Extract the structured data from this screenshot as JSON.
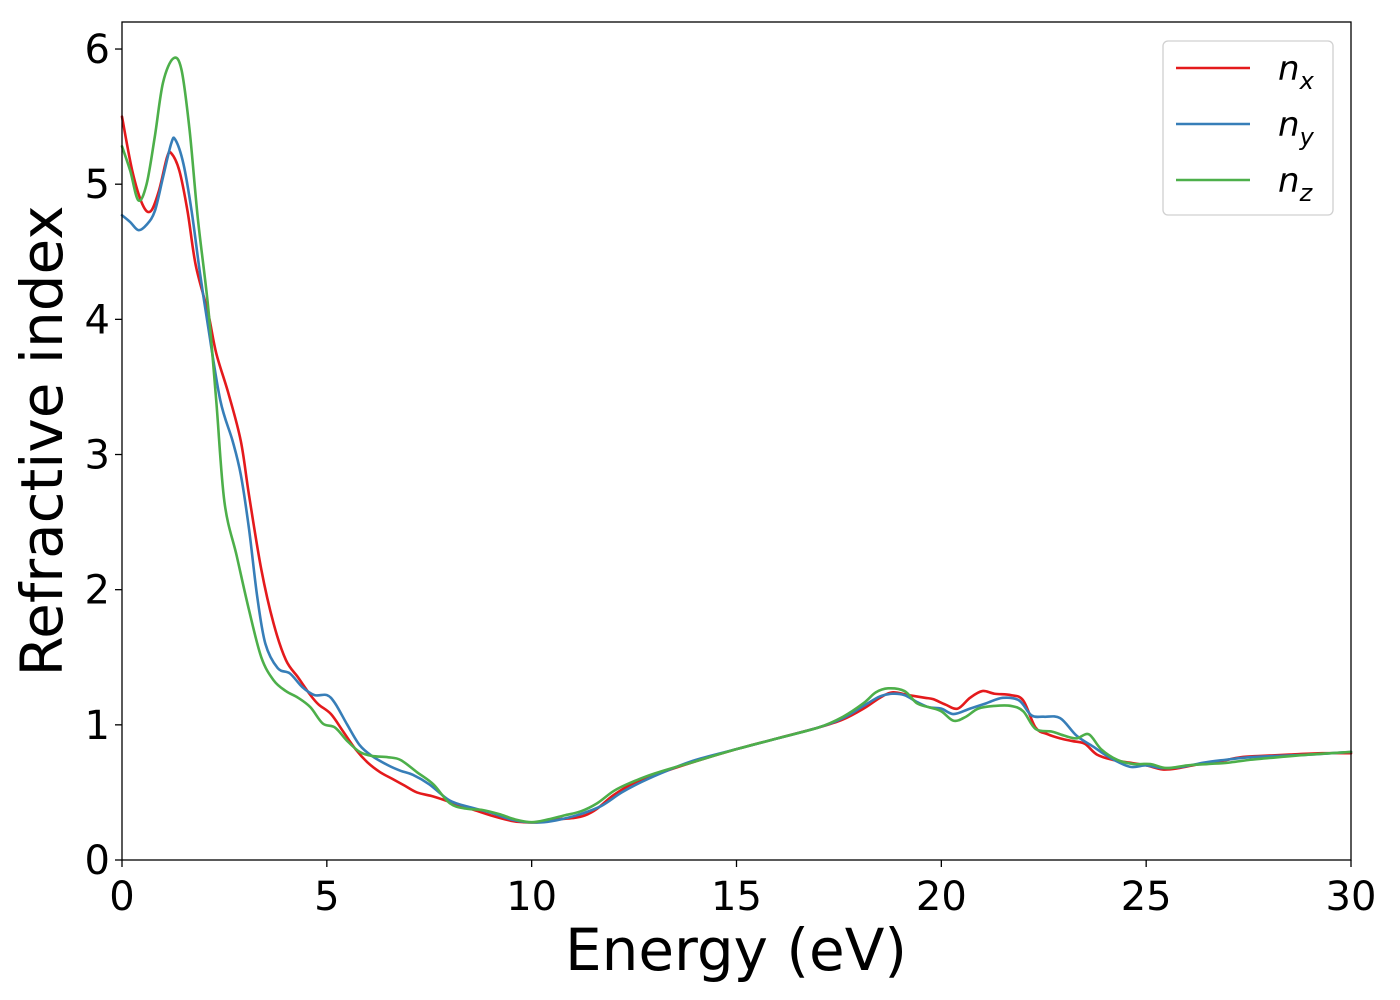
{
  "chart_data": {
    "type": "line",
    "title": "",
    "xlabel": "Energy (eV)",
    "ylabel": "Refractive index",
    "xlim": [
      0,
      30
    ],
    "ylim": [
      0,
      6.2
    ],
    "xticks": [
      0,
      5,
      10,
      15,
      20,
      25,
      30
    ],
    "yticks": [
      0,
      1,
      2,
      3,
      4,
      5,
      6
    ],
    "grid": false,
    "legend": {
      "position": "top-right",
      "entries": [
        {
          "base": "n",
          "sub": "x"
        },
        {
          "base": "n",
          "sub": "y"
        },
        {
          "base": "n",
          "sub": "z"
        }
      ]
    },
    "series": [
      {
        "name": "n_x",
        "color": "#e41a1c",
        "points": [
          [
            0,
            5.5
          ],
          [
            0.25,
            5.1
          ],
          [
            0.5,
            4.85
          ],
          [
            0.7,
            4.8
          ],
          [
            0.9,
            4.95
          ],
          [
            1.1,
            5.2
          ],
          [
            1.2,
            5.23
          ],
          [
            1.4,
            5.1
          ],
          [
            1.6,
            4.8
          ],
          [
            1.8,
            4.4
          ],
          [
            2.1,
            4.05
          ],
          [
            2.3,
            3.75
          ],
          [
            2.6,
            3.45
          ],
          [
            2.9,
            3.1
          ],
          [
            3.1,
            2.7
          ],
          [
            3.4,
            2.15
          ],
          [
            3.7,
            1.75
          ],
          [
            4.0,
            1.48
          ],
          [
            4.3,
            1.35
          ],
          [
            4.6,
            1.22
          ],
          [
            4.8,
            1.15
          ],
          [
            5.1,
            1.08
          ],
          [
            5.4,
            0.95
          ],
          [
            5.7,
            0.82
          ],
          [
            6.0,
            0.72
          ],
          [
            6.3,
            0.65
          ],
          [
            6.6,
            0.6
          ],
          [
            6.9,
            0.55
          ],
          [
            7.2,
            0.5
          ],
          [
            7.6,
            0.47
          ],
          [
            8.0,
            0.43
          ],
          [
            8.5,
            0.38
          ],
          [
            9.0,
            0.33
          ],
          [
            9.5,
            0.29
          ],
          [
            9.8,
            0.28
          ],
          [
            10.2,
            0.28
          ],
          [
            10.6,
            0.3
          ],
          [
            11.0,
            0.31
          ],
          [
            11.3,
            0.33
          ],
          [
            11.6,
            0.38
          ],
          [
            12.0,
            0.48
          ],
          [
            12.5,
            0.57
          ],
          [
            13.0,
            0.63
          ],
          [
            14.0,
            0.73
          ],
          [
            15.0,
            0.82
          ],
          [
            16.0,
            0.9
          ],
          [
            17.0,
            0.98
          ],
          [
            17.6,
            1.04
          ],
          [
            18.1,
            1.12
          ],
          [
            18.5,
            1.2
          ],
          [
            18.8,
            1.24
          ],
          [
            19.2,
            1.22
          ],
          [
            19.6,
            1.2
          ],
          [
            19.8,
            1.19
          ],
          [
            20.1,
            1.15
          ],
          [
            20.4,
            1.12
          ],
          [
            20.7,
            1.2
          ],
          [
            21.0,
            1.25
          ],
          [
            21.3,
            1.23
          ],
          [
            21.7,
            1.22
          ],
          [
            22.0,
            1.18
          ],
          [
            22.3,
            0.98
          ],
          [
            22.6,
            0.93
          ],
          [
            22.9,
            0.9
          ],
          [
            23.2,
            0.88
          ],
          [
            23.5,
            0.86
          ],
          [
            23.8,
            0.78
          ],
          [
            24.2,
            0.74
          ],
          [
            24.6,
            0.72
          ],
          [
            25.0,
            0.7
          ],
          [
            25.4,
            0.67
          ],
          [
            25.8,
            0.68
          ],
          [
            26.3,
            0.71
          ],
          [
            26.8,
            0.73
          ],
          [
            27.3,
            0.76
          ],
          [
            27.8,
            0.77
          ],
          [
            28.5,
            0.78
          ],
          [
            29.3,
            0.79
          ],
          [
            30.0,
            0.79
          ]
        ]
      },
      {
        "name": "n_y",
        "color": "#377eb8",
        "points": [
          [
            0,
            4.77
          ],
          [
            0.2,
            4.72
          ],
          [
            0.4,
            4.66
          ],
          [
            0.6,
            4.7
          ],
          [
            0.8,
            4.8
          ],
          [
            1.0,
            5.05
          ],
          [
            1.2,
            5.3
          ],
          [
            1.3,
            5.33
          ],
          [
            1.5,
            5.15
          ],
          [
            1.7,
            4.8
          ],
          [
            1.9,
            4.35
          ],
          [
            2.1,
            3.95
          ],
          [
            2.4,
            3.4
          ],
          [
            2.7,
            3.1
          ],
          [
            2.9,
            2.85
          ],
          [
            3.1,
            2.45
          ],
          [
            3.3,
            1.95
          ],
          [
            3.5,
            1.6
          ],
          [
            3.8,
            1.42
          ],
          [
            4.1,
            1.38
          ],
          [
            4.4,
            1.28
          ],
          [
            4.7,
            1.22
          ],
          [
            5.0,
            1.22
          ],
          [
            5.2,
            1.16
          ],
          [
            5.5,
            1.0
          ],
          [
            5.8,
            0.85
          ],
          [
            6.1,
            0.77
          ],
          [
            6.5,
            0.7
          ],
          [
            6.8,
            0.66
          ],
          [
            7.1,
            0.63
          ],
          [
            7.5,
            0.56
          ],
          [
            8.0,
            0.44
          ],
          [
            8.5,
            0.39
          ],
          [
            9.0,
            0.35
          ],
          [
            9.5,
            0.3
          ],
          [
            9.9,
            0.28
          ],
          [
            10.3,
            0.28
          ],
          [
            10.7,
            0.3
          ],
          [
            11.2,
            0.34
          ],
          [
            11.7,
            0.4
          ],
          [
            12.2,
            0.5
          ],
          [
            12.7,
            0.58
          ],
          [
            13.3,
            0.66
          ],
          [
            14.0,
            0.74
          ],
          [
            15.0,
            0.82
          ],
          [
            16.0,
            0.9
          ],
          [
            17.0,
            0.98
          ],
          [
            17.6,
            1.05
          ],
          [
            18.1,
            1.14
          ],
          [
            18.5,
            1.21
          ],
          [
            18.8,
            1.23
          ],
          [
            19.1,
            1.22
          ],
          [
            19.4,
            1.17
          ],
          [
            19.7,
            1.13
          ],
          [
            20.0,
            1.12
          ],
          [
            20.3,
            1.08
          ],
          [
            20.7,
            1.12
          ],
          [
            21.1,
            1.16
          ],
          [
            21.5,
            1.2
          ],
          [
            21.9,
            1.18
          ],
          [
            22.2,
            1.07
          ],
          [
            22.5,
            1.06
          ],
          [
            22.9,
            1.05
          ],
          [
            23.3,
            0.92
          ],
          [
            23.7,
            0.84
          ],
          [
            24.1,
            0.76
          ],
          [
            24.6,
            0.69
          ],
          [
            25.0,
            0.7
          ],
          [
            25.4,
            0.68
          ],
          [
            25.9,
            0.69
          ],
          [
            26.4,
            0.72
          ],
          [
            26.9,
            0.74
          ],
          [
            27.5,
            0.76
          ],
          [
            28.2,
            0.77
          ],
          [
            29.0,
            0.78
          ],
          [
            30.0,
            0.8
          ]
        ]
      },
      {
        "name": "n_z",
        "color": "#4daf4a",
        "points": [
          [
            0,
            5.28
          ],
          [
            0.2,
            5.1
          ],
          [
            0.4,
            4.88
          ],
          [
            0.6,
            5.0
          ],
          [
            0.8,
            5.35
          ],
          [
            1.0,
            5.75
          ],
          [
            1.25,
            5.93
          ],
          [
            1.45,
            5.85
          ],
          [
            1.65,
            5.4
          ],
          [
            1.85,
            4.75
          ],
          [
            2.1,
            4.1
          ],
          [
            2.3,
            3.4
          ],
          [
            2.5,
            2.65
          ],
          [
            2.8,
            2.25
          ],
          [
            3.1,
            1.85
          ],
          [
            3.4,
            1.5
          ],
          [
            3.7,
            1.33
          ],
          [
            4.0,
            1.25
          ],
          [
            4.3,
            1.2
          ],
          [
            4.6,
            1.13
          ],
          [
            4.9,
            1.01
          ],
          [
            5.2,
            0.98
          ],
          [
            5.5,
            0.88
          ],
          [
            5.8,
            0.8
          ],
          [
            6.1,
            0.77
          ],
          [
            6.5,
            0.76
          ],
          [
            6.8,
            0.74
          ],
          [
            7.2,
            0.65
          ],
          [
            7.6,
            0.56
          ],
          [
            8.0,
            0.42
          ],
          [
            8.4,
            0.38
          ],
          [
            8.8,
            0.37
          ],
          [
            9.2,
            0.34
          ],
          [
            9.6,
            0.3
          ],
          [
            10.0,
            0.28
          ],
          [
            10.4,
            0.3
          ],
          [
            10.8,
            0.33
          ],
          [
            11.2,
            0.36
          ],
          [
            11.6,
            0.42
          ],
          [
            12.0,
            0.51
          ],
          [
            12.4,
            0.57
          ],
          [
            13.0,
            0.64
          ],
          [
            14.0,
            0.73
          ],
          [
            15.0,
            0.82
          ],
          [
            16.0,
            0.9
          ],
          [
            17.0,
            0.98
          ],
          [
            17.6,
            1.06
          ],
          [
            18.1,
            1.16
          ],
          [
            18.4,
            1.24
          ],
          [
            18.7,
            1.27
          ],
          [
            19.1,
            1.25
          ],
          [
            19.4,
            1.16
          ],
          [
            19.7,
            1.13
          ],
          [
            20.0,
            1.1
          ],
          [
            20.3,
            1.03
          ],
          [
            20.6,
            1.06
          ],
          [
            20.9,
            1.12
          ],
          [
            21.3,
            1.14
          ],
          [
            21.7,
            1.14
          ],
          [
            22.0,
            1.1
          ],
          [
            22.3,
            0.97
          ],
          [
            22.7,
            0.95
          ],
          [
            23.0,
            0.92
          ],
          [
            23.3,
            0.9
          ],
          [
            23.6,
            0.93
          ],
          [
            23.9,
            0.82
          ],
          [
            24.3,
            0.74
          ],
          [
            24.7,
            0.71
          ],
          [
            25.1,
            0.71
          ],
          [
            25.5,
            0.68
          ],
          [
            26.0,
            0.7
          ],
          [
            26.5,
            0.71
          ],
          [
            27.0,
            0.72
          ],
          [
            27.5,
            0.74
          ],
          [
            28.2,
            0.76
          ],
          [
            29.0,
            0.78
          ],
          [
            30.0,
            0.8
          ]
        ]
      }
    ]
  }
}
